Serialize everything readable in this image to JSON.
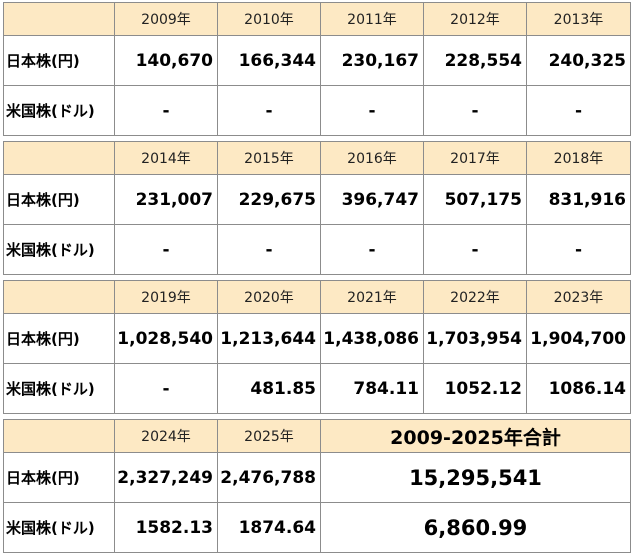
{
  "row_labels": {
    "jp": "日本株(円)",
    "us": "米国株(ドル)"
  },
  "blocks": [
    {
      "years": [
        "2009年",
        "2010年",
        "2011年",
        "2012年",
        "2013年"
      ],
      "jp": [
        "140,670",
        "166,344",
        "230,167",
        "228,554",
        "240,325"
      ],
      "us": [
        "-",
        "-",
        "-",
        "-",
        "-"
      ]
    },
    {
      "years": [
        "2014年",
        "2015年",
        "2016年",
        "2017年",
        "2018年"
      ],
      "jp": [
        "231,007",
        "229,675",
        "396,747",
        "507,175",
        "831,916"
      ],
      "us": [
        "-",
        "-",
        "-",
        "-",
        "-"
      ]
    },
    {
      "years": [
        "2019年",
        "2020年",
        "2021年",
        "2022年",
        "2023年"
      ],
      "jp": [
        "1,028,540",
        "1,213,644",
        "1,438,086",
        "1,703,954",
        "1,904,700"
      ],
      "us": [
        "-",
        "481.85",
        "784.11",
        "1052.12",
        "1086.14"
      ]
    },
    {
      "years": [
        "2024年",
        "2025年"
      ],
      "jp": [
        "2,327,249",
        "2,476,788"
      ],
      "us": [
        "1582.13",
        "1874.64"
      ]
    }
  ],
  "total": {
    "label": "2009-2025年合計",
    "jp": "15,295,541",
    "us": "6,860.99"
  }
}
